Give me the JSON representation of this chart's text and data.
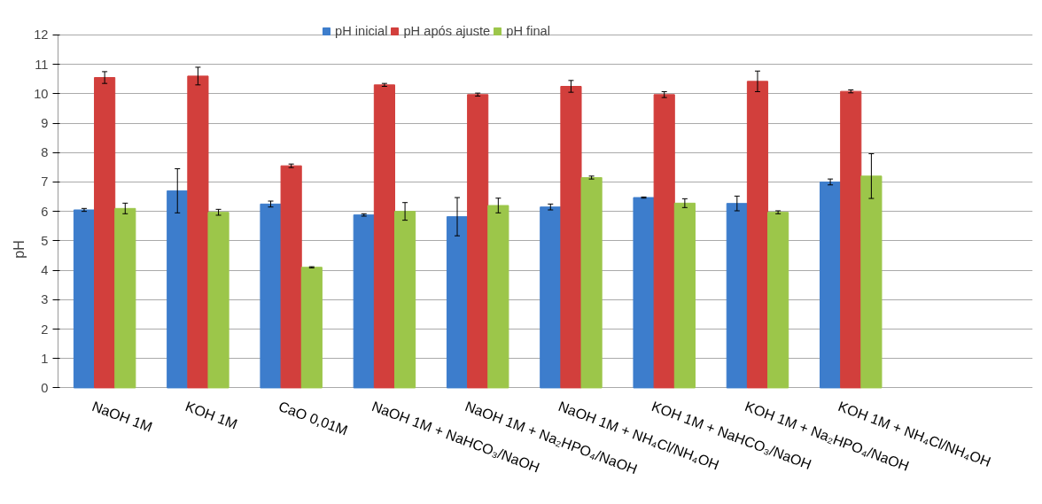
{
  "chart_data": {
    "type": "bar",
    "ylabel": "pH",
    "categories": [
      "NaOH 1M",
      "KOH 1M",
      "CaO 0,01M",
      "NaOH 1M + NaHCO₃/NaOH",
      "NaOH 1M + Na₂HPO₄/NaOH",
      "NaOH 1M + NH₄Cl/NH₄OH",
      "KOH 1M + NaHCO₃/NaOH",
      "KOH 1M + Na₂HPO₄/NaOH",
      "KOH 1M + NH₄Cl/NH₄OH"
    ],
    "series": [
      {
        "name": "pH inicial",
        "color": "#3d7dcc",
        "values": [
          6.05,
          6.7,
          6.25,
          5.88,
          5.82,
          6.15,
          6.47,
          6.27,
          7.0
        ],
        "errors": [
          0.05,
          0.75,
          0.1,
          0.04,
          0.65,
          0.1,
          0.02,
          0.25,
          0.1
        ]
      },
      {
        "name": "pH após ajuste",
        "color": "#d23f3c",
        "values": [
          10.55,
          10.6,
          7.55,
          10.3,
          9.97,
          10.25,
          9.97,
          10.42,
          10.08
        ],
        "errors": [
          0.2,
          0.3,
          0.06,
          0.05,
          0.05,
          0.2,
          0.1,
          0.35,
          0.05
        ]
      },
      {
        "name": "pH final",
        "color": "#9cc64a",
        "values": [
          6.1,
          5.97,
          4.1,
          6.0,
          6.2,
          7.15,
          6.28,
          5.97,
          7.2
        ],
        "errors": [
          0.18,
          0.1,
          0.02,
          0.3,
          0.25,
          0.05,
          0.15,
          0.05,
          0.76
        ]
      }
    ],
    "ylim": [
      0,
      12
    ],
    "yticks": [
      0,
      1,
      2,
      3,
      4,
      5,
      6,
      7,
      8,
      9,
      10,
      11,
      12
    ],
    "grid": "y",
    "legend": "top"
  }
}
